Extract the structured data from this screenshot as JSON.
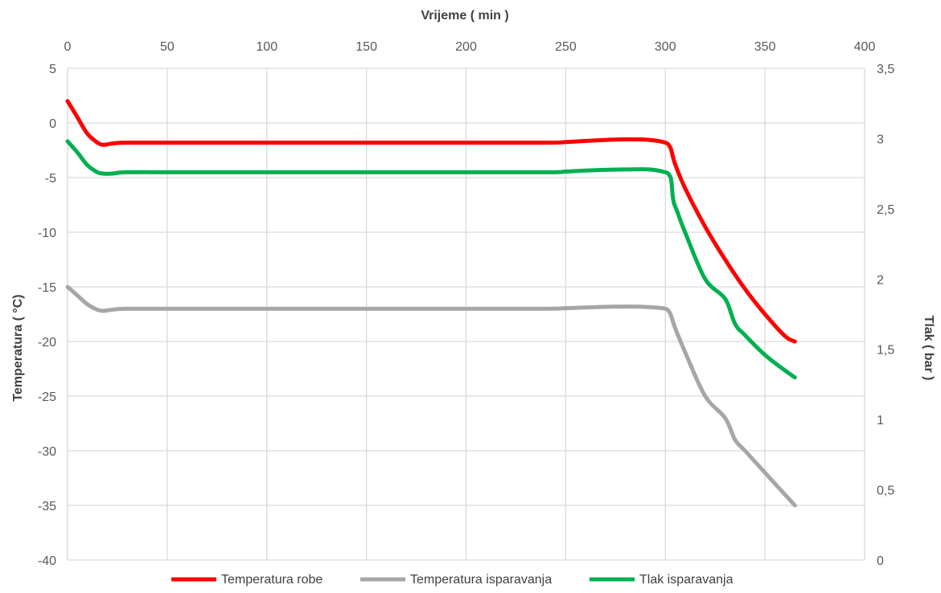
{
  "chart_data": {
    "type": "line",
    "xlabel": "Vrijeme ( min )",
    "ylabel": "Temperatura ( °C)",
    "y2label": "Tlak ( bar )",
    "xlim": [
      0,
      400
    ],
    "ylim": [
      -40,
      5
    ],
    "y2lim": [
      0,
      3.5
    ],
    "x_ticks": [
      "0",
      "50",
      "100",
      "150",
      "200",
      "250",
      "300",
      "350",
      "400"
    ],
    "y_ticks": [
      "5",
      "0",
      "-5",
      "-10",
      "-15",
      "-20",
      "-25",
      "-30",
      "-35",
      "-40"
    ],
    "y2_ticks": [
      "3,5",
      "3",
      "2,5",
      "2",
      "1,5",
      "1",
      "0,5",
      "0"
    ],
    "x_axis_position": "top",
    "grid": true,
    "legend_position": "bottom",
    "series": [
      {
        "name": "Temperatura robe",
        "color": "#ff0000",
        "axis": "left",
        "x": [
          0,
          5,
          10,
          15,
          18,
          22,
          30,
          60,
          120,
          180,
          240,
          250,
          265,
          280,
          292,
          300,
          302,
          303,
          305,
          310,
          320,
          330,
          340,
          350,
          360,
          365
        ],
        "y": [
          2,
          0.5,
          -1,
          -1.8,
          -2,
          -1.9,
          -1.8,
          -1.8,
          -1.8,
          -1.8,
          -1.8,
          -1.75,
          -1.6,
          -1.5,
          -1.55,
          -1.8,
          -2.1,
          -2.5,
          -3.8,
          -6,
          -9.5,
          -12.5,
          -15.2,
          -17.5,
          -19.5,
          -20
        ]
      },
      {
        "name": "Temperatura isparavanja",
        "color": "#a6a6a6",
        "axis": "left",
        "x": [
          0,
          5,
          10,
          15,
          18,
          22,
          30,
          60,
          120,
          180,
          240,
          250,
          265,
          280,
          292,
          300,
          302,
          303,
          305,
          310,
          320,
          330,
          335,
          340,
          350,
          360,
          365
        ],
        "y": [
          -15,
          -15.8,
          -16.6,
          -17.1,
          -17.2,
          -17.1,
          -17,
          -17,
          -17,
          -17,
          -17,
          -16.95,
          -16.85,
          -16.8,
          -16.85,
          -17,
          -17.3,
          -17.7,
          -18.8,
          -21,
          -25,
          -27,
          -29,
          -30,
          -32,
          -34,
          -35
        ]
      },
      {
        "name": "Tlak isparavanja",
        "color": "#00b050",
        "axis": "right",
        "x": [
          0,
          5,
          10,
          15,
          18,
          22,
          30,
          60,
          120,
          180,
          240,
          250,
          265,
          280,
          292,
          300,
          302,
          303,
          304,
          306,
          310,
          320,
          330,
          335,
          340,
          350,
          360,
          365
        ],
        "y": [
          2.98,
          2.9,
          2.81,
          2.76,
          2.75,
          2.75,
          2.76,
          2.76,
          2.76,
          2.76,
          2.76,
          2.765,
          2.775,
          2.78,
          2.78,
          2.76,
          2.74,
          2.7,
          2.56,
          2.48,
          2.33,
          2.0,
          1.86,
          1.68,
          1.6,
          1.46,
          1.35,
          1.3
        ]
      }
    ]
  }
}
